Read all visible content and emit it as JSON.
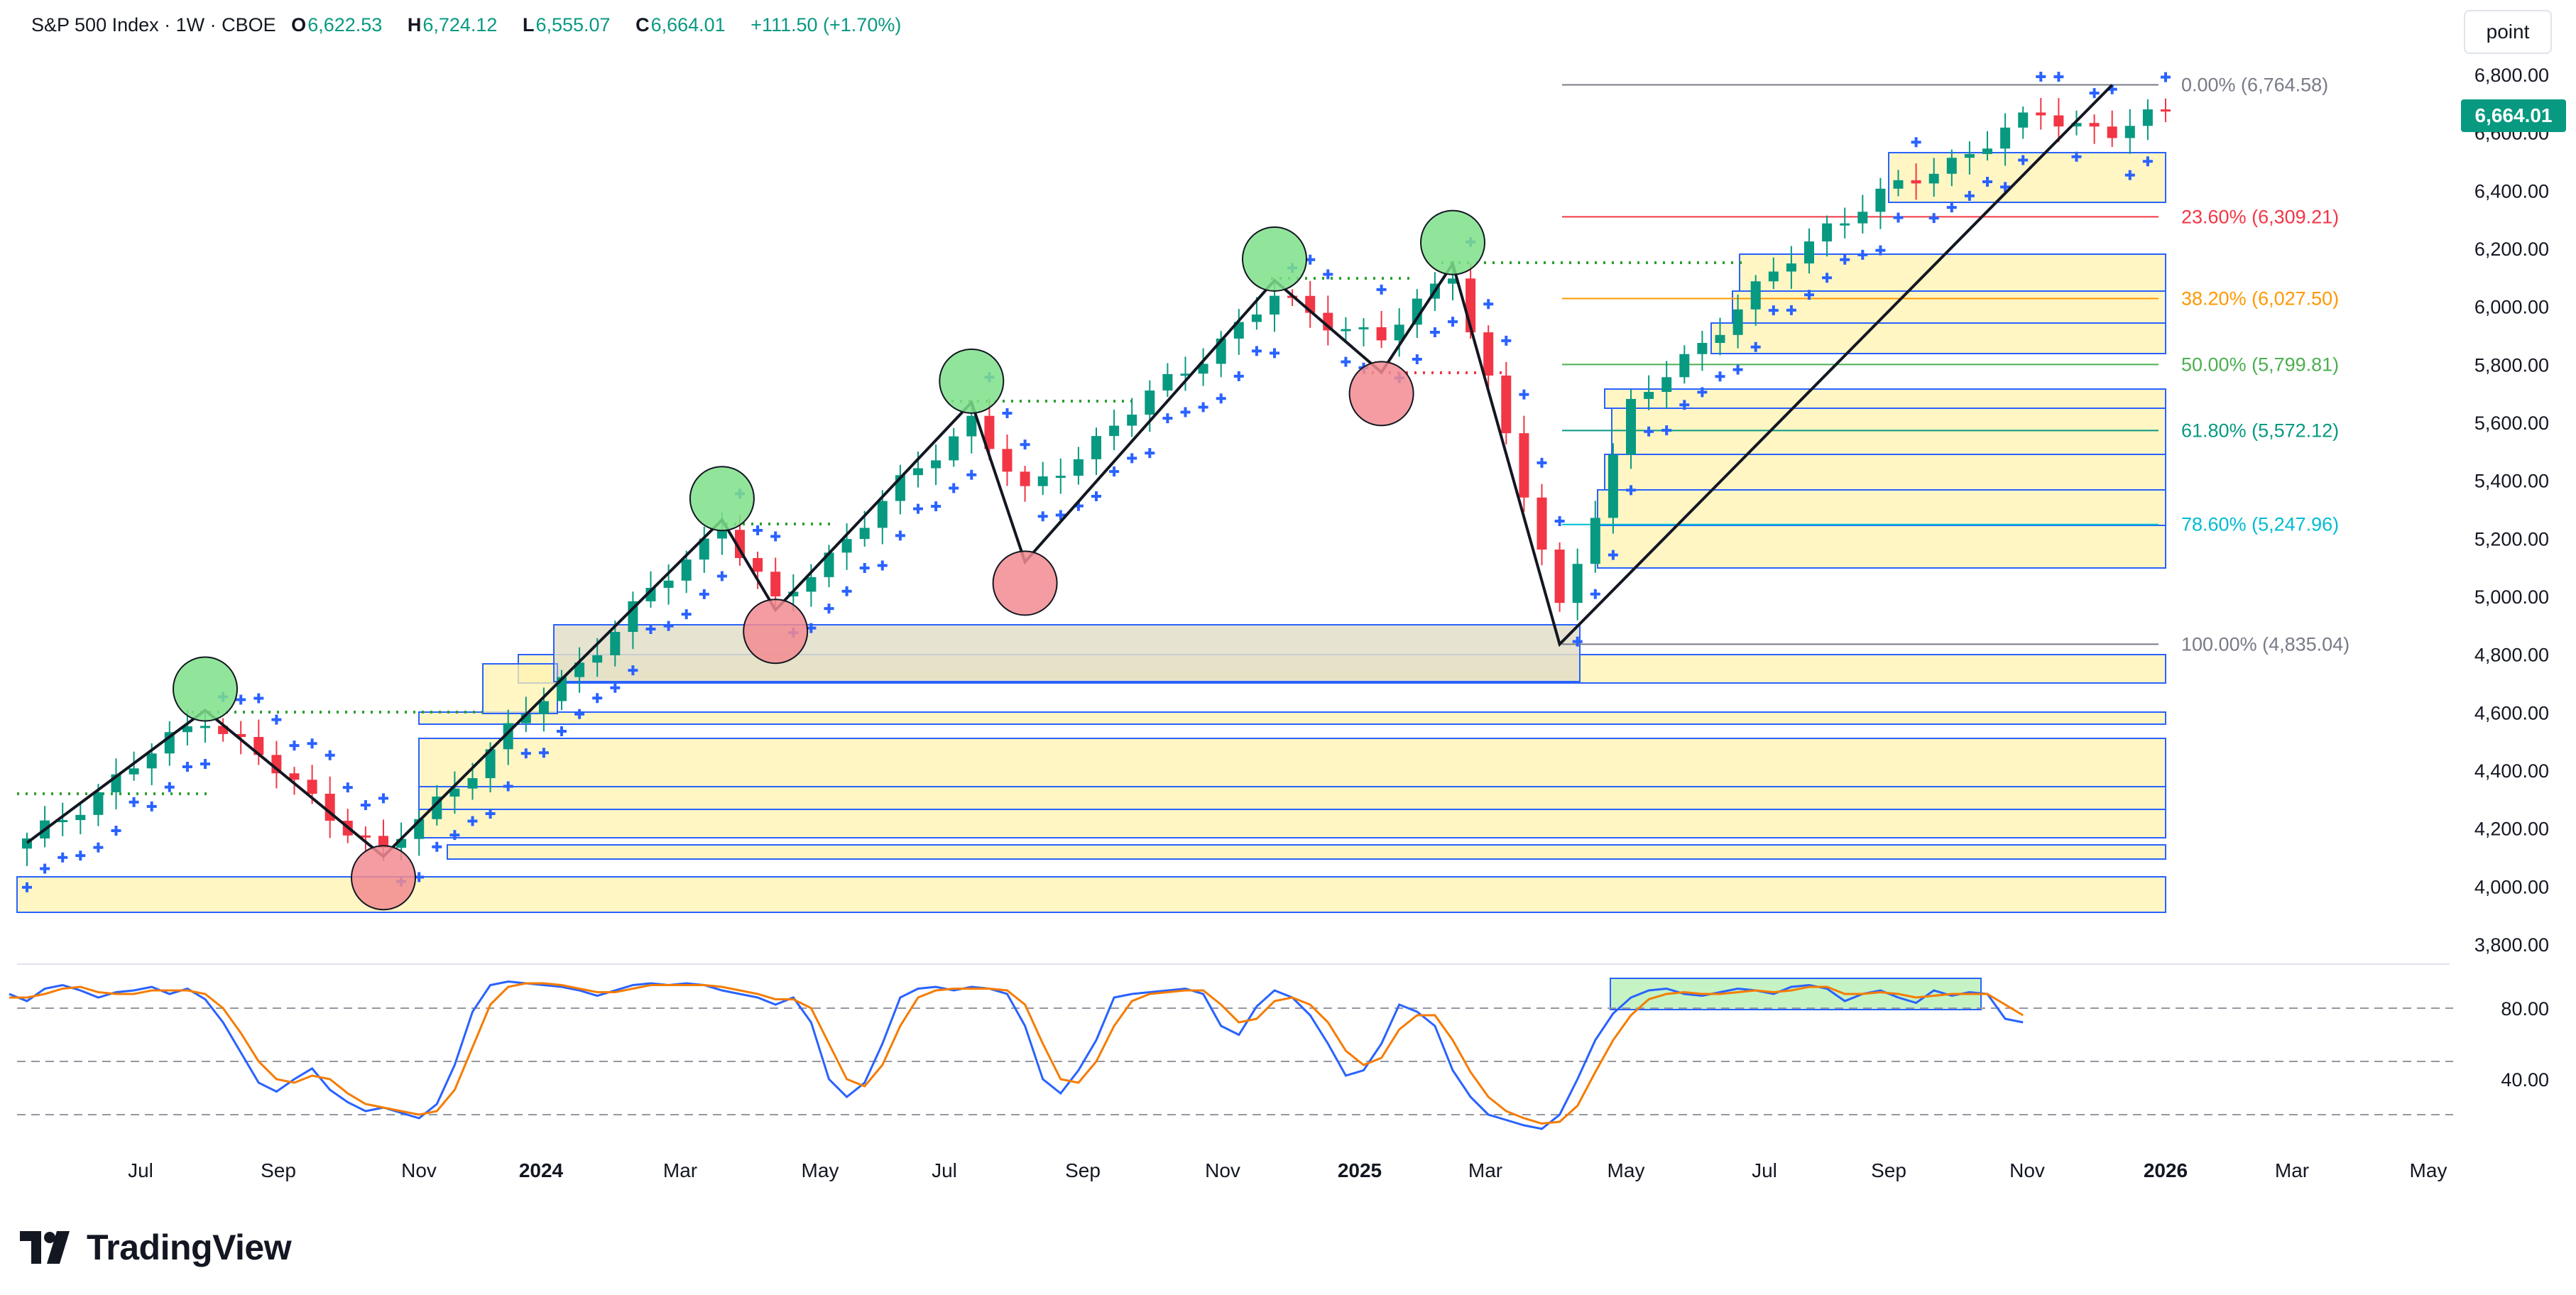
{
  "header": {
    "symbol": "S&P 500 Index · 1W · CBOE",
    "open_label": "O",
    "open": "6,622.53",
    "high_label": "H",
    "high": "6,724.12",
    "low_label": "L",
    "low": "6,555.07",
    "close_label": "C",
    "close": "6,664.01",
    "change": "+111.50 (+1.70%)"
  },
  "unit_button": "point",
  "last_price_tag": "6,664.01",
  "brand": "TradingView",
  "colors": {
    "up": "#089981",
    "down": "#f23645",
    "psar": "#2962ff",
    "stoch_k": "#2962ff",
    "stoch_d": "#f57c00",
    "zone_fill": "#fff3b0",
    "zone_border": "#2962ff",
    "swing_high": "#7ee08a",
    "swing_low": "#f28b90"
  },
  "chart_data": [
    {
      "type": "candlestick",
      "title": "S&P 500 Index · 1W · CBOE",
      "x_tick_labels": [
        "Jul",
        "Sep",
        "Nov",
        "2024",
        "Mar",
        "May",
        "Jul",
        "Sep",
        "Nov",
        "2025",
        "Mar",
        "May",
        "Jul",
        "Sep",
        "Nov",
        "2026",
        "Mar",
        "May"
      ],
      "x_tick_bold": [
        "2024",
        "2025",
        "2026"
      ],
      "y_tick_labels": [
        "3,800.00",
        "4,000.00",
        "4,200.00",
        "4,400.00",
        "4,600.00",
        "4,800.00",
        "5,000.00",
        "5,200.00",
        "5,400.00",
        "5,600.00",
        "5,800.00",
        "6,000.00",
        "6,200.00",
        "6,400.00",
        "6,600.00",
        "6,800.00"
      ],
      "ylim": [
        3760,
        6840
      ],
      "grid": false,
      "fib_levels": [
        {
          "label": "0.00% (6,764.58)",
          "value": 6764.58,
          "color": "#787b86"
        },
        {
          "label": "23.60% (6,309.21)",
          "value": 6309.21,
          "color": "#f23645"
        },
        {
          "label": "38.20% (6,027.50)",
          "value": 6027.5,
          "color": "#ff9800"
        },
        {
          "label": "50.00% (5,799.81)",
          "value": 5799.81,
          "color": "#4caf50"
        },
        {
          "label": "61.80% (5,572.12)",
          "value": 5572.12,
          "color": "#089981"
        },
        {
          "label": "78.60% (5,247.96)",
          "value": 5247.96,
          "color": "#00bcd4"
        },
        {
          "label": "100.00% (4,835.04)",
          "value": 4835.04,
          "color": "#787b86"
        }
      ],
      "zigzag": [
        {
          "week": 0,
          "price": 4150
        },
        {
          "week": 10,
          "price": 4607
        },
        {
          "week": 20,
          "price": 4103
        },
        {
          "week": 39,
          "price": 5264
        },
        {
          "week": 42,
          "price": 4953
        },
        {
          "week": 53,
          "price": 5669
        },
        {
          "week": 56,
          "price": 5119
        },
        {
          "week": 70,
          "price": 6090
        },
        {
          "week": 76,
          "price": 5773
        },
        {
          "week": 80,
          "price": 6147
        },
        {
          "week": 86,
          "price": 4835
        },
        {
          "week": 117,
          "price": 6764
        }
      ],
      "swing_highs": [
        {
          "week": 10,
          "price": 4607
        },
        {
          "week": 39,
          "price": 5264
        },
        {
          "week": 53,
          "price": 5669
        },
        {
          "week": 70,
          "price": 6090
        },
        {
          "week": 80,
          "price": 6147
        }
      ],
      "swing_lows": [
        {
          "week": 20,
          "price": 4103
        },
        {
          "week": 42,
          "price": 4953
        },
        {
          "week": 56,
          "price": 5119
        },
        {
          "week": 76,
          "price": 5773
        }
      ],
      "candle_anchor_weeks": [
        0,
        10,
        20,
        39,
        42,
        53,
        56,
        70,
        76,
        80,
        86,
        90,
        101,
        113,
        117,
        120
      ],
      "candle_anchor_closes": [
        4150,
        4590,
        4110,
        5250,
        4967,
        5615,
        5346,
        6031,
        5881,
        6130,
        4960,
        5650,
        6280,
        6664,
        6600,
        6664
      ]
    },
    {
      "type": "line",
      "title": "",
      "ylim": [
        0,
        100
      ],
      "y_tick_labels": [
        "40.00",
        "80.00"
      ],
      "reference_lines": [
        80,
        50,
        20
      ],
      "series": [
        {
          "name": "",
          "color": "#2962ff",
          "values": [
            88,
            84,
            91,
            93,
            90,
            86,
            89,
            90,
            92,
            88,
            91,
            85,
            72,
            55,
            38,
            33,
            40,
            46,
            34,
            27,
            22,
            24,
            21,
            18,
            26,
            48,
            78,
            93,
            95,
            94,
            93,
            92,
            90,
            87,
            90,
            93,
            94,
            93,
            94,
            93,
            90,
            88,
            86,
            82,
            86,
            72,
            40,
            30,
            38,
            60,
            86,
            91,
            92,
            90,
            92,
            91,
            88,
            70,
            40,
            32,
            45,
            62,
            86,
            88,
            89,
            90,
            91,
            88,
            70,
            65,
            81,
            90,
            86,
            76,
            60,
            42,
            45,
            60,
            82,
            78,
            70,
            45,
            30,
            20,
            17,
            14,
            12,
            20,
            40,
            62,
            77,
            86,
            90,
            91,
            88,
            87,
            89,
            91,
            90,
            88,
            92,
            93,
            91,
            84,
            88,
            90,
            86,
            83,
            90,
            87,
            89,
            88,
            74,
            72
          ]
        },
        {
          "name": "",
          "color": "#f57c00",
          "values": [
            86,
            86,
            88,
            91,
            92,
            89,
            88,
            88,
            90,
            90,
            90,
            88,
            80,
            66,
            50,
            40,
            38,
            42,
            40,
            32,
            26,
            24,
            22,
            20,
            22,
            34,
            58,
            82,
            92,
            94,
            94,
            93,
            91,
            89,
            89,
            91,
            93,
            93,
            93,
            93,
            92,
            90,
            88,
            85,
            85,
            80,
            60,
            40,
            36,
            48,
            70,
            86,
            90,
            91,
            91,
            91,
            90,
            82,
            60,
            40,
            38,
            50,
            70,
            84,
            88,
            89,
            90,
            90,
            82,
            72,
            74,
            84,
            86,
            82,
            72,
            56,
            48,
            52,
            68,
            76,
            76,
            62,
            44,
            30,
            22,
            18,
            15,
            16,
            25,
            44,
            62,
            76,
            85,
            88,
            89,
            88,
            88,
            89,
            90,
            89,
            90,
            92,
            92,
            88,
            88,
            89,
            88,
            86,
            87,
            88,
            88,
            88,
            82,
            76
          ]
        }
      ]
    }
  ]
}
